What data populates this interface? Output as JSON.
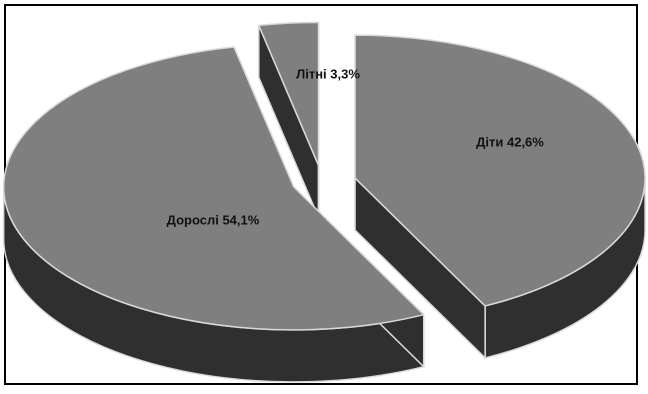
{
  "chart_data": {
    "type": "pie",
    "style": "3d-exploded",
    "slices": [
      {
        "label": "Діти",
        "value": 42.6,
        "text": "Діти 42,6%"
      },
      {
        "label": "Дорослі",
        "value": 54.1,
        "text": "Дорослі 54,1%"
      },
      {
        "label": "Літні",
        "value": 3.3,
        "text": "Літні 3,3%"
      }
    ]
  },
  "colors": {
    "top": "#7f7f7f",
    "side": "#2f2f2f",
    "edge": "#d9d9d9",
    "frame": "#000000"
  }
}
